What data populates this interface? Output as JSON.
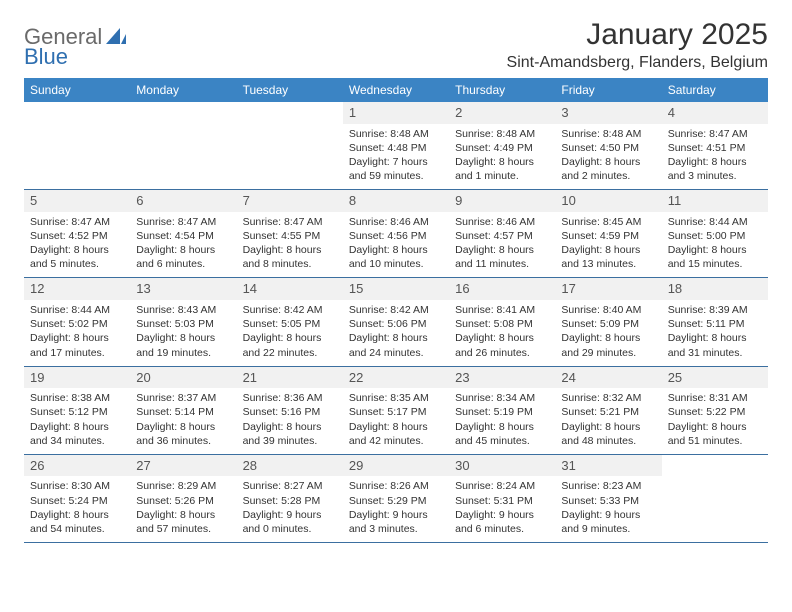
{
  "brand": {
    "part1": "General",
    "part2": "Blue"
  },
  "title": "January 2025",
  "location": "Sint-Amandsberg, Flanders, Belgium",
  "colors": {
    "header_bg": "#3b84c4",
    "header_text": "#ffffff",
    "row_border": "#3b6fa0",
    "daynum_bg": "#f1f1f1",
    "text": "#333333",
    "brand_gray": "#6a6a6a",
    "brand_blue": "#2f6fb0"
  },
  "weekdays": [
    "Sunday",
    "Monday",
    "Tuesday",
    "Wednesday",
    "Thursday",
    "Friday",
    "Saturday"
  ],
  "weeks": [
    [
      {
        "day": "",
        "sunrise": "",
        "sunset": "",
        "daylight1": "",
        "daylight2": ""
      },
      {
        "day": "",
        "sunrise": "",
        "sunset": "",
        "daylight1": "",
        "daylight2": ""
      },
      {
        "day": "",
        "sunrise": "",
        "sunset": "",
        "daylight1": "",
        "daylight2": ""
      },
      {
        "day": "1",
        "sunrise": "Sunrise: 8:48 AM",
        "sunset": "Sunset: 4:48 PM",
        "daylight1": "Daylight: 7 hours",
        "daylight2": "and 59 minutes."
      },
      {
        "day": "2",
        "sunrise": "Sunrise: 8:48 AM",
        "sunset": "Sunset: 4:49 PM",
        "daylight1": "Daylight: 8 hours",
        "daylight2": "and 1 minute."
      },
      {
        "day": "3",
        "sunrise": "Sunrise: 8:48 AM",
        "sunset": "Sunset: 4:50 PM",
        "daylight1": "Daylight: 8 hours",
        "daylight2": "and 2 minutes."
      },
      {
        "day": "4",
        "sunrise": "Sunrise: 8:47 AM",
        "sunset": "Sunset: 4:51 PM",
        "daylight1": "Daylight: 8 hours",
        "daylight2": "and 3 minutes."
      }
    ],
    [
      {
        "day": "5",
        "sunrise": "Sunrise: 8:47 AM",
        "sunset": "Sunset: 4:52 PM",
        "daylight1": "Daylight: 8 hours",
        "daylight2": "and 5 minutes."
      },
      {
        "day": "6",
        "sunrise": "Sunrise: 8:47 AM",
        "sunset": "Sunset: 4:54 PM",
        "daylight1": "Daylight: 8 hours",
        "daylight2": "and 6 minutes."
      },
      {
        "day": "7",
        "sunrise": "Sunrise: 8:47 AM",
        "sunset": "Sunset: 4:55 PM",
        "daylight1": "Daylight: 8 hours",
        "daylight2": "and 8 minutes."
      },
      {
        "day": "8",
        "sunrise": "Sunrise: 8:46 AM",
        "sunset": "Sunset: 4:56 PM",
        "daylight1": "Daylight: 8 hours",
        "daylight2": "and 10 minutes."
      },
      {
        "day": "9",
        "sunrise": "Sunrise: 8:46 AM",
        "sunset": "Sunset: 4:57 PM",
        "daylight1": "Daylight: 8 hours",
        "daylight2": "and 11 minutes."
      },
      {
        "day": "10",
        "sunrise": "Sunrise: 8:45 AM",
        "sunset": "Sunset: 4:59 PM",
        "daylight1": "Daylight: 8 hours",
        "daylight2": "and 13 minutes."
      },
      {
        "day": "11",
        "sunrise": "Sunrise: 8:44 AM",
        "sunset": "Sunset: 5:00 PM",
        "daylight1": "Daylight: 8 hours",
        "daylight2": "and 15 minutes."
      }
    ],
    [
      {
        "day": "12",
        "sunrise": "Sunrise: 8:44 AM",
        "sunset": "Sunset: 5:02 PM",
        "daylight1": "Daylight: 8 hours",
        "daylight2": "and 17 minutes."
      },
      {
        "day": "13",
        "sunrise": "Sunrise: 8:43 AM",
        "sunset": "Sunset: 5:03 PM",
        "daylight1": "Daylight: 8 hours",
        "daylight2": "and 19 minutes."
      },
      {
        "day": "14",
        "sunrise": "Sunrise: 8:42 AM",
        "sunset": "Sunset: 5:05 PM",
        "daylight1": "Daylight: 8 hours",
        "daylight2": "and 22 minutes."
      },
      {
        "day": "15",
        "sunrise": "Sunrise: 8:42 AM",
        "sunset": "Sunset: 5:06 PM",
        "daylight1": "Daylight: 8 hours",
        "daylight2": "and 24 minutes."
      },
      {
        "day": "16",
        "sunrise": "Sunrise: 8:41 AM",
        "sunset": "Sunset: 5:08 PM",
        "daylight1": "Daylight: 8 hours",
        "daylight2": "and 26 minutes."
      },
      {
        "day": "17",
        "sunrise": "Sunrise: 8:40 AM",
        "sunset": "Sunset: 5:09 PM",
        "daylight1": "Daylight: 8 hours",
        "daylight2": "and 29 minutes."
      },
      {
        "day": "18",
        "sunrise": "Sunrise: 8:39 AM",
        "sunset": "Sunset: 5:11 PM",
        "daylight1": "Daylight: 8 hours",
        "daylight2": "and 31 minutes."
      }
    ],
    [
      {
        "day": "19",
        "sunrise": "Sunrise: 8:38 AM",
        "sunset": "Sunset: 5:12 PM",
        "daylight1": "Daylight: 8 hours",
        "daylight2": "and 34 minutes."
      },
      {
        "day": "20",
        "sunrise": "Sunrise: 8:37 AM",
        "sunset": "Sunset: 5:14 PM",
        "daylight1": "Daylight: 8 hours",
        "daylight2": "and 36 minutes."
      },
      {
        "day": "21",
        "sunrise": "Sunrise: 8:36 AM",
        "sunset": "Sunset: 5:16 PM",
        "daylight1": "Daylight: 8 hours",
        "daylight2": "and 39 minutes."
      },
      {
        "day": "22",
        "sunrise": "Sunrise: 8:35 AM",
        "sunset": "Sunset: 5:17 PM",
        "daylight1": "Daylight: 8 hours",
        "daylight2": "and 42 minutes."
      },
      {
        "day": "23",
        "sunrise": "Sunrise: 8:34 AM",
        "sunset": "Sunset: 5:19 PM",
        "daylight1": "Daylight: 8 hours",
        "daylight2": "and 45 minutes."
      },
      {
        "day": "24",
        "sunrise": "Sunrise: 8:32 AM",
        "sunset": "Sunset: 5:21 PM",
        "daylight1": "Daylight: 8 hours",
        "daylight2": "and 48 minutes."
      },
      {
        "day": "25",
        "sunrise": "Sunrise: 8:31 AM",
        "sunset": "Sunset: 5:22 PM",
        "daylight1": "Daylight: 8 hours",
        "daylight2": "and 51 minutes."
      }
    ],
    [
      {
        "day": "26",
        "sunrise": "Sunrise: 8:30 AM",
        "sunset": "Sunset: 5:24 PM",
        "daylight1": "Daylight: 8 hours",
        "daylight2": "and 54 minutes."
      },
      {
        "day": "27",
        "sunrise": "Sunrise: 8:29 AM",
        "sunset": "Sunset: 5:26 PM",
        "daylight1": "Daylight: 8 hours",
        "daylight2": "and 57 minutes."
      },
      {
        "day": "28",
        "sunrise": "Sunrise: 8:27 AM",
        "sunset": "Sunset: 5:28 PM",
        "daylight1": "Daylight: 9 hours",
        "daylight2": "and 0 minutes."
      },
      {
        "day": "29",
        "sunrise": "Sunrise: 8:26 AM",
        "sunset": "Sunset: 5:29 PM",
        "daylight1": "Daylight: 9 hours",
        "daylight2": "and 3 minutes."
      },
      {
        "day": "30",
        "sunrise": "Sunrise: 8:24 AM",
        "sunset": "Sunset: 5:31 PM",
        "daylight1": "Daylight: 9 hours",
        "daylight2": "and 6 minutes."
      },
      {
        "day": "31",
        "sunrise": "Sunrise: 8:23 AM",
        "sunset": "Sunset: 5:33 PM",
        "daylight1": "Daylight: 9 hours",
        "daylight2": "and 9 minutes."
      },
      {
        "day": "",
        "sunrise": "",
        "sunset": "",
        "daylight1": "",
        "daylight2": ""
      }
    ]
  ]
}
